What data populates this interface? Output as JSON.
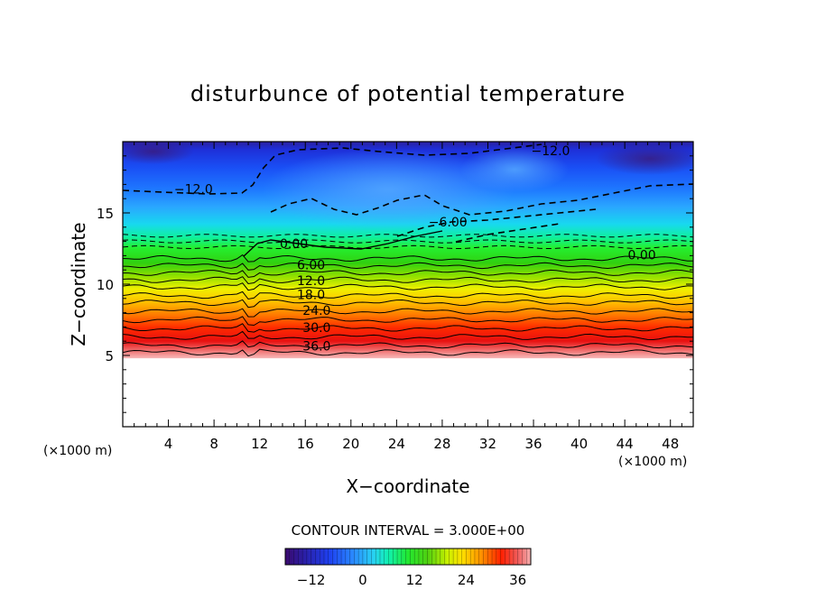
{
  "chart_data": {
    "type": "heatmap",
    "title": "disturbunce of potential temperature",
    "xlabel": "X−coordinate",
    "ylabel": "Z−coordinate",
    "x_unit": "(×1000 m)",
    "y_unit": "(×1000 m)",
    "xlim": [
      0,
      50
    ],
    "ylim": [
      0,
      20
    ],
    "x_ticks": [
      "4",
      "8",
      "12",
      "16",
      "20",
      "24",
      "28",
      "32",
      "36",
      "40",
      "44",
      "48"
    ],
    "y_ticks": [
      "5",
      "10",
      "15"
    ],
    "contour_interval_label": "CONTOUR INTERVAL =  3.000E+00",
    "colorbar": {
      "range": [
        -18,
        39
      ],
      "tick_labels": [
        "−12",
        "0",
        "12",
        "24",
        "36"
      ],
      "tick_values": [
        -12,
        0,
        12,
        24,
        36
      ]
    },
    "contour_labels": [
      {
        "text": "−12.0",
        "x": 37.5,
        "z": 19.3
      },
      {
        "text": "−12.0",
        "x": 6.2,
        "z": 16.6
      },
      {
        "text": "−6.00",
        "x": 28.5,
        "z": 14.3
      },
      {
        "text": "0.00",
        "x": 15.0,
        "z": 12.8
      },
      {
        "text": "0.00",
        "x": 45.5,
        "z": 12.0
      },
      {
        "text": "6.00",
        "x": 16.5,
        "z": 11.3
      },
      {
        "text": "12.0",
        "x": 16.5,
        "z": 10.2
      },
      {
        "text": "18.0",
        "x": 16.5,
        "z": 9.2
      },
      {
        "text": "24.0",
        "x": 17.0,
        "z": 8.1
      },
      {
        "text": "30.0",
        "x": 17.0,
        "z": 6.9
      },
      {
        "text": "36.0",
        "x": 17.0,
        "z": 5.6
      }
    ]
  }
}
